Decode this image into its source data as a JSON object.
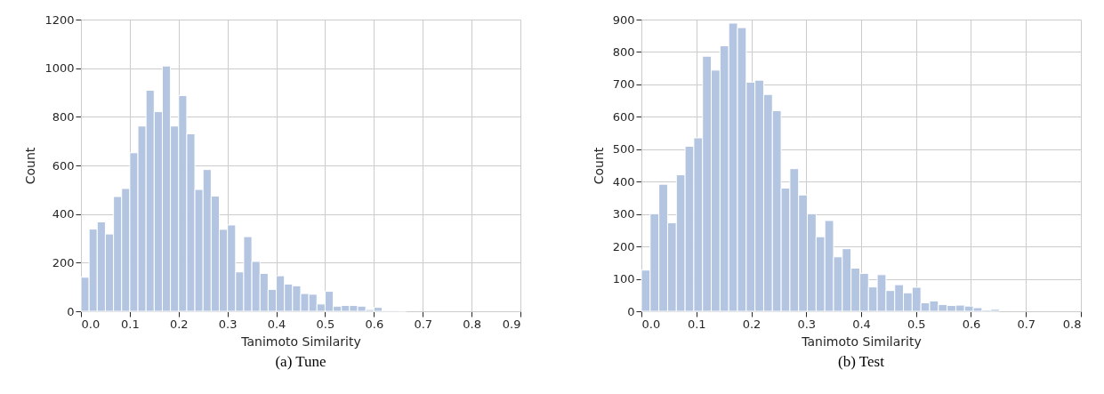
{
  "chart_data": [
    {
      "type": "histogram",
      "title": "(a) Tune",
      "xlabel": "Tanimoto Similarity",
      "ylabel": "Count",
      "color": "#b4c5e1",
      "grid": true,
      "bins": [
        0,
        0.0167,
        0.0333,
        0.05,
        0.0667,
        0.0833,
        0.1,
        0.1167,
        0.1333,
        0.15,
        0.1667,
        0.1833,
        0.2,
        0.2167,
        0.2333,
        0.25,
        0.2667,
        0.2833,
        0.3,
        0.3167,
        0.3333,
        0.35,
        0.3667,
        0.3833,
        0.4,
        0.4167,
        0.4333,
        0.45,
        0.4667,
        0.4833,
        0.5,
        0.5167,
        0.5333,
        0.55,
        0.5667,
        0.5833,
        0.6,
        0.6167,
        0.6333,
        0.65,
        0.6667,
        0.6833
      ],
      "values": [
        140,
        338,
        368,
        318,
        472,
        505,
        652,
        762,
        909,
        821,
        1009,
        762,
        887,
        730,
        501,
        583,
        474,
        337,
        355,
        162,
        307,
        205,
        156,
        90,
        146,
        112,
        105,
        73,
        70,
        30,
        82,
        21,
        24,
        24,
        21,
        7,
        16,
        3,
        3,
        2,
        null
      ],
      "xlim": [
        0,
        0.9
      ],
      "xticks": [
        {
          "value": 0,
          "label": "0.0"
        },
        0.1,
        0.2,
        0.3,
        0.4,
        0.5,
        0.6,
        0.7,
        0.8,
        0.9
      ],
      "ylim": [
        0,
        1200
      ],
      "yticks": [
        0,
        200,
        400,
        600,
        800,
        1000,
        1200
      ]
    },
    {
      "type": "histogram",
      "title": "(b) Test",
      "xlabel": "Tanimoto Similarity",
      "ylabel": "Count",
      "color": "#b4c5e1",
      "grid": true,
      "bins": [
        0,
        0.0159,
        0.0318,
        0.0477,
        0.0636,
        0.0795,
        0.0954,
        0.1113,
        0.1272,
        0.1431,
        0.159,
        0.1749,
        0.1908,
        0.2067,
        0.2226,
        0.2385,
        0.2544,
        0.2703,
        0.2862,
        0.3021,
        0.318,
        0.3339,
        0.3498,
        0.3657,
        0.3816,
        0.3975,
        0.4134,
        0.4293,
        0.4452,
        0.4611,
        0.477,
        0.4929,
        0.5088,
        0.5247,
        0.5406,
        0.5565,
        0.5724,
        0.5883,
        0.6042,
        0.6201,
        0.636,
        0.6519,
        0.6678,
        0.6837,
        0.6996,
        0.7155,
        0.7314,
        0.7473,
        0.7632
      ],
      "values": [
        127,
        301,
        392,
        273,
        421,
        509,
        535,
        787,
        744,
        819,
        889,
        875,
        707,
        713,
        669,
        619,
        380,
        440,
        359,
        301,
        230,
        280,
        168,
        193,
        133,
        117,
        75,
        113,
        64,
        82,
        57,
        74,
        26,
        32,
        21,
        18,
        19,
        16,
        11,
        4,
        6,
        null,
        null,
        null,
        null,
        null,
        null,
        null
      ],
      "xlim": [
        0,
        0.8
      ],
      "xticks": [
        {
          "value": 0,
          "label": "0.0"
        },
        0.1,
        0.2,
        0.3,
        0.4,
        0.5,
        0.6,
        0.7,
        0.8
      ],
      "ylim": [
        0,
        900
      ],
      "yticks": [
        0,
        100,
        200,
        300,
        400,
        500,
        600,
        700,
        800,
        900
      ]
    }
  ]
}
